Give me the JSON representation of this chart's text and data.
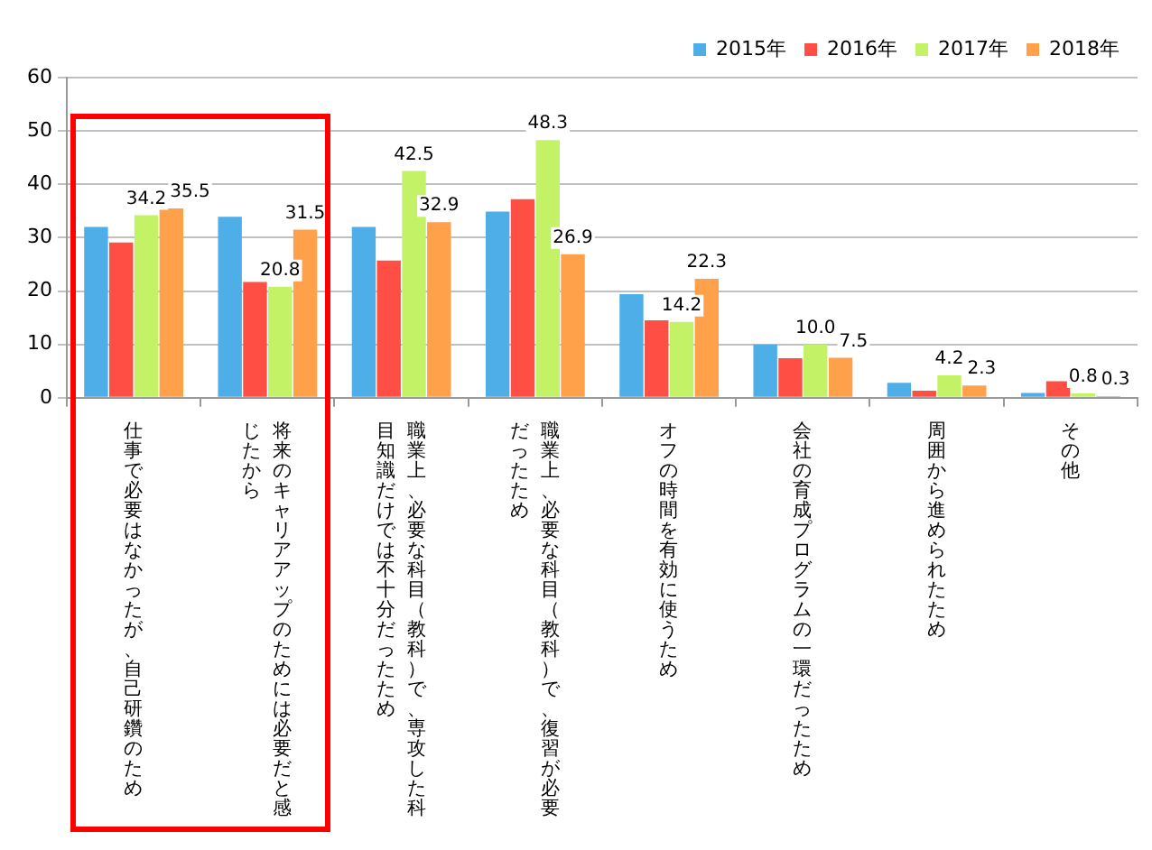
{
  "chart_data": {
    "type": "bar",
    "categories": [
      "仕事で必要はなかったが、自己研鑽のため",
      "将来のキャリアアップのためには必要だと感じたから",
      "職業上、必要な科目（教科）で、専攻した科目知識だけでは不十分だったため",
      "職業上、必要な科目（教科）で、復習が必要だったため",
      "オフの時間を有効に使うため",
      "会社の育成プログラムの一環だったため",
      "周囲から進められたため",
      "その他"
    ],
    "series": [
      {
        "name": "2015年",
        "color": "#4eaee8",
        "values": [
          32.0,
          33.9,
          32.0,
          34.9,
          19.4,
          10.0,
          2.8,
          0.9
        ]
      },
      {
        "name": "2016年",
        "color": "#ff4f44",
        "values": [
          29.1,
          21.7,
          25.7,
          37.2,
          14.5,
          7.4,
          1.3,
          3.1
        ]
      },
      {
        "name": "2017年",
        "color": "#c4f266",
        "values": [
          34.2,
          20.8,
          42.5,
          48.3,
          14.2,
          10.0,
          4.2,
          0.8
        ],
        "value_labels": [
          "34.2",
          "20.8",
          "42.5",
          "48.3",
          "14.2",
          "10.0",
          "4.2",
          "0.8"
        ]
      },
      {
        "name": "2018年",
        "color": "#ffa04a",
        "values": [
          35.5,
          31.5,
          32.9,
          26.9,
          22.3,
          7.5,
          2.3,
          0.3
        ],
        "value_labels": [
          "35.5",
          "31.5",
          "32.9",
          "26.9",
          "22.3",
          "7.5",
          "2.3",
          "0.3"
        ]
      }
    ],
    "ylim": [
      0,
      60
    ],
    "yticks": [
      0,
      10,
      20,
      30,
      40,
      50,
      60
    ],
    "grid": "y",
    "legend": "top right"
  }
}
